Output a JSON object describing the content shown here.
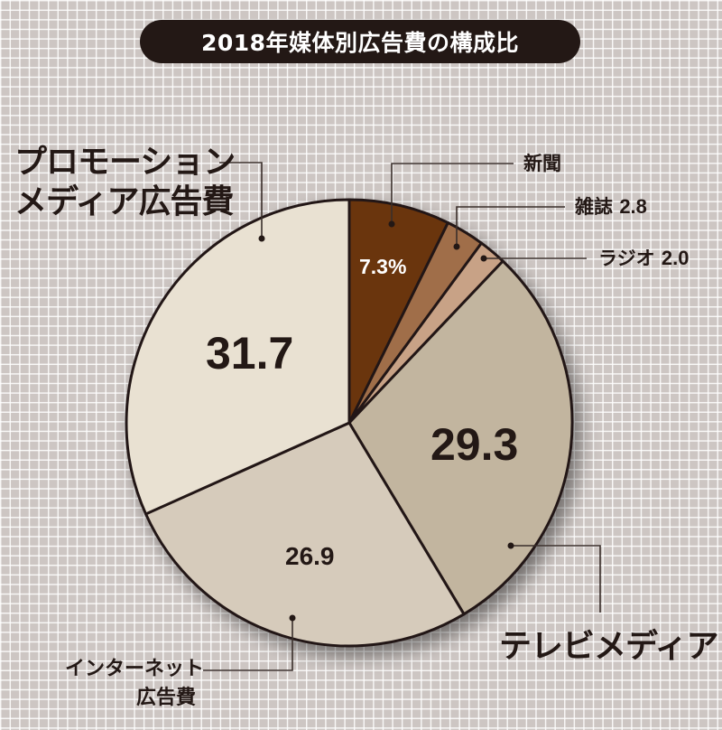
{
  "title": "2018年媒体別広告費の構成比",
  "chart_data": {
    "type": "pie",
    "title": "2018年媒体別広告費の構成比",
    "unit": "%",
    "start_angle_deg": 0,
    "direction": "clockwise",
    "categories": [
      "新聞",
      "雑誌",
      "ラジオ",
      "テレビメディア",
      "インターネット広告費",
      "プロモーションメディア広告費"
    ],
    "values": [
      7.3,
      2.8,
      2.0,
      29.3,
      26.9,
      31.7
    ],
    "colors": [
      "#6b3410",
      "#a06e4a",
      "#c8a286",
      "#c2b59f",
      "#d6cbbb",
      "#e9e1d2"
    ],
    "data_labels": [
      "7.3%",
      "2.8",
      "2.0",
      "29.3",
      "26.9",
      "31.7"
    ]
  },
  "labels": {
    "newspaper": "新聞",
    "magazine": "雑誌",
    "magazine_value": "2.8",
    "radio": "ラジオ",
    "radio_value": "2.0",
    "tv": "テレビメディア",
    "internet_line1": "インターネット",
    "internet_line2": "広告費",
    "promotion_line1": "プロモーション",
    "promotion_line2": "メディア広告費"
  },
  "values": {
    "newspaper": "7.3%",
    "tv": "29.3",
    "internet": "26.9",
    "promotion": "31.7"
  }
}
